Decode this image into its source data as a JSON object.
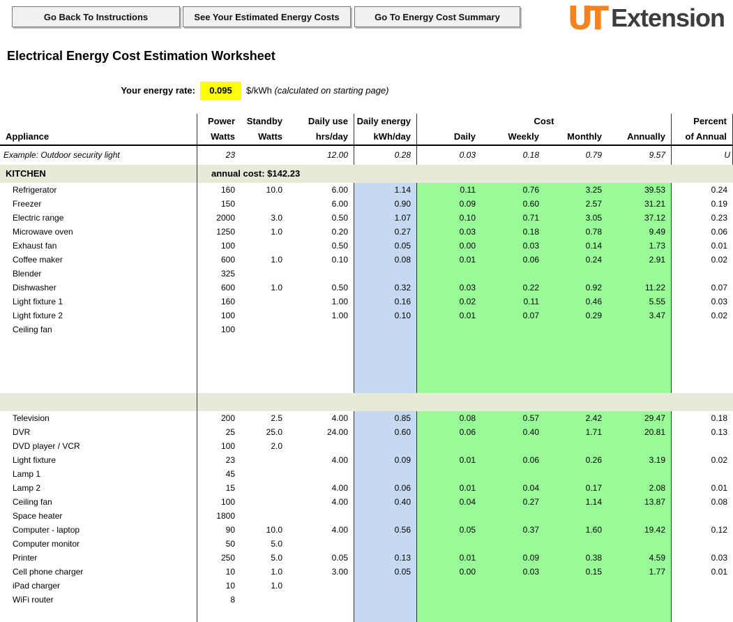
{
  "toolbar": {
    "buttons": [
      {
        "label": "Go Back To Instructions"
      },
      {
        "label": "See Your Estimated Energy Costs"
      },
      {
        "label": "Go To Energy Cost Summary"
      }
    ]
  },
  "logo": {
    "mark": "UT",
    "text": "Extension"
  },
  "title": "Electrical Energy Cost Estimation Worksheet",
  "rate": {
    "label": "Your energy rate:",
    "value": "0.095",
    "unit": "$/kWh",
    "note": "(calculated on starting page)"
  },
  "colors": {
    "rate_highlight": "#ffff00",
    "daily_energy_column": "#c5d9f1",
    "cost_columns": "#98fb98",
    "section_band": "#e9e9da",
    "ut_orange": "#f38221"
  },
  "table": {
    "headers": {
      "appliance": "Appliance",
      "power_top": "Power",
      "power_bottom": "Watts",
      "standby_top": "Standby",
      "standby_bottom": "Watts",
      "use_top": "Daily use",
      "use_bottom": "hrs/day",
      "energy_top": "Daily energy",
      "energy_bottom": "kWh/day",
      "cost_group": "Cost",
      "daily": "Daily",
      "weekly": "Weekly",
      "monthly": "Monthly",
      "annually": "Annually",
      "percent_top": "Percent",
      "percent_bottom": "of Annual"
    },
    "example": {
      "name": "Example: Outdoor security light",
      "values": [
        "23",
        "",
        "12.00",
        "0.28",
        "0.03",
        "0.18",
        "0.79",
        "9.57",
        "U"
      ]
    },
    "sections": [
      {
        "title": "KITCHEN",
        "cost_label": "annual cost:  $142.23",
        "rows": [
          {
            "name": "Refrigerator",
            "values": [
              "160",
              "10.0",
              "6.00",
              "1.14",
              "0.11",
              "0.76",
              "3.25",
              "39.53",
              "0.24"
            ],
            "selected": 2
          },
          {
            "name": "Freezer",
            "values": [
              "150",
              "",
              "6.00",
              "0.90",
              "0.09",
              "0.60",
              "2.57",
              "31.21",
              "0.19"
            ]
          },
          {
            "name": "Electric range",
            "values": [
              "2000",
              "3.0",
              "0.50",
              "1.07",
              "0.10",
              "0.71",
              "3.05",
              "37.12",
              "0.23"
            ]
          },
          {
            "name": "Microwave oven",
            "values": [
              "1250",
              "1.0",
              "0.20",
              "0.27",
              "0.03",
              "0.18",
              "0.78",
              "9.49",
              "0.06"
            ]
          },
          {
            "name": "Exhaust fan",
            "values": [
              "100",
              "",
              "0.50",
              "0.05",
              "0.00",
              "0.03",
              "0.14",
              "1.73",
              "0.01"
            ]
          },
          {
            "name": "Coffee maker",
            "values": [
              "600",
              "1.0",
              "0.10",
              "0.08",
              "0.01",
              "0.06",
              "0.24",
              "2.91",
              "0.02"
            ]
          },
          {
            "name": "Blender",
            "values": [
              "325",
              "",
              "",
              "",
              "",
              "",
              "",
              "",
              ""
            ]
          },
          {
            "name": "Dishwasher",
            "values": [
              "600",
              "1.0",
              "0.50",
              "0.32",
              "0.03",
              "0.22",
              "0.92",
              "11.22",
              "0.07"
            ]
          },
          {
            "name": "Light fixture 1",
            "values": [
              "160",
              "",
              "1.00",
              "0.16",
              "0.02",
              "0.11",
              "0.46",
              "5.55",
              "0.03"
            ]
          },
          {
            "name": "Light fixture 2",
            "values": [
              "100",
              "",
              "1.00",
              "0.10",
              "0.01",
              "0.07",
              "0.29",
              "3.47",
              "0.02"
            ]
          },
          {
            "name": "Ceiling fan",
            "values": [
              "100",
              "",
              "",
              "",
              "",
              "",
              "",
              "",
              ""
            ]
          }
        ]
      },
      {
        "title": "",
        "cost_label": "",
        "rows": [
          {
            "name": "Television",
            "values": [
              "200",
              "2.5",
              "4.00",
              "0.85",
              "0.08",
              "0.57",
              "2.42",
              "29.47",
              "0.18"
            ]
          },
          {
            "name": "DVR",
            "values": [
              "25",
              "25.0",
              "24.00",
              "0.60",
              "0.06",
              "0.40",
              "1.71",
              "20.81",
              "0.13"
            ]
          },
          {
            "name": "DVD player / VCR",
            "values": [
              "100",
              "2.0",
              "",
              "",
              "",
              "",
              "",
              "",
              ""
            ]
          },
          {
            "name": "Light fixture",
            "values": [
              "23",
              "",
              "4.00",
              "0.09",
              "0.01",
              "0.06",
              "0.26",
              "3.19",
              "0.02"
            ]
          },
          {
            "name": "Lamp 1",
            "values": [
              "45",
              "",
              "",
              "",
              "",
              "",
              "",
              "",
              ""
            ]
          },
          {
            "name": "Lamp 2",
            "values": [
              "15",
              "",
              "4.00",
              "0.06",
              "0.01",
              "0.04",
              "0.17",
              "2.08",
              "0.01"
            ]
          },
          {
            "name": "Ceiling fan",
            "values": [
              "100",
              "",
              "4.00",
              "0.40",
              "0.04",
              "0.27",
              "1.14",
              "13.87",
              "0.08"
            ]
          },
          {
            "name": "Space heater",
            "values": [
              "1800",
              "",
              "",
              "",
              "",
              "",
              "",
              "",
              ""
            ]
          },
          {
            "name": "Computer - laptop",
            "values": [
              "90",
              "10.0",
              "4.00",
              "0.56",
              "0.05",
              "0.37",
              "1.60",
              "19.42",
              "0.12"
            ]
          },
          {
            "name": "Computer monitor",
            "values": [
              "50",
              "5.0",
              "",
              "",
              "",
              "",
              "",
              "",
              ""
            ]
          },
          {
            "name": "Printer",
            "values": [
              "250",
              "5.0",
              "0.05",
              "0.13",
              "0.01",
              "0.09",
              "0.38",
              "4.59",
              "0.03"
            ]
          },
          {
            "name": "Cell phone charger",
            "values": [
              "10",
              "1.0",
              "3.00",
              "0.05",
              "0.00",
              "0.03",
              "0.15",
              "1.77",
              "0.01"
            ]
          },
          {
            "name": "iPad charger",
            "values": [
              "10",
              "1.0",
              "",
              "",
              "",
              "",
              "",
              "",
              ""
            ]
          },
          {
            "name": "WiFi router",
            "values": [
              "8",
              "",
              "",
              "",
              "",
              "",
              "",
              "",
              ""
            ]
          }
        ]
      }
    ]
  }
}
